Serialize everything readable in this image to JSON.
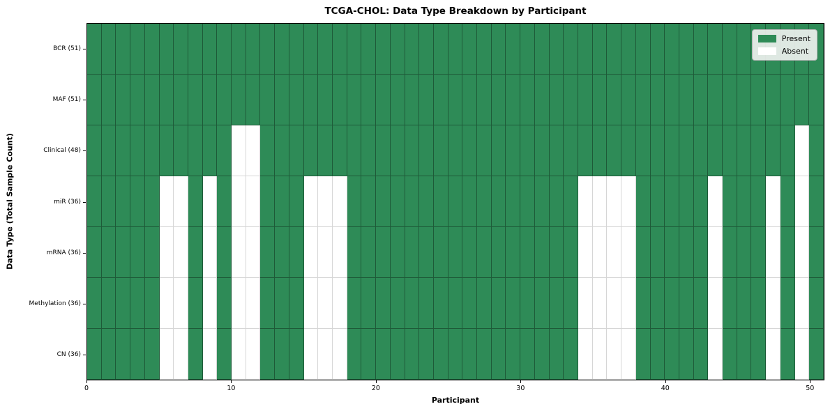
{
  "chart_data": {
    "type": "heatmap",
    "title": "TCGA-CHOL: Data Type Breakdown by Participant",
    "xlabel": "Participant",
    "ylabel": "Data Type (Total Sample Count)",
    "n_participants": 51,
    "x_range": [
      0,
      51
    ],
    "x_ticks": [
      0,
      10,
      20,
      30,
      40,
      50
    ],
    "grid": true,
    "legend_position": "upper right",
    "colors": {
      "present": "#2e8b57",
      "absent": "#ffffff"
    },
    "legend": [
      {
        "label": "Present",
        "color": "#2e8b57"
      },
      {
        "label": "Absent",
        "color": "#ffffff"
      }
    ],
    "rows": [
      {
        "label": "BCR (51)",
        "total_samples": 51,
        "absent_participants": []
      },
      {
        "label": "MAF (51)",
        "total_samples": 51,
        "absent_participants": []
      },
      {
        "label": "Clinical (48)",
        "total_samples": 48,
        "absent_participants": [
          10,
          11,
          49
        ]
      },
      {
        "label": "miR (36)",
        "total_samples": 36,
        "absent_participants": [
          5,
          6,
          8,
          10,
          11,
          15,
          16,
          17,
          34,
          35,
          36,
          37,
          43,
          47,
          49
        ]
      },
      {
        "label": "mRNA (36)",
        "total_samples": 36,
        "absent_participants": [
          5,
          6,
          8,
          10,
          11,
          15,
          16,
          17,
          34,
          35,
          36,
          37,
          43,
          47,
          49
        ]
      },
      {
        "label": "Methylation (36)",
        "total_samples": 36,
        "absent_participants": [
          5,
          6,
          8,
          10,
          11,
          15,
          16,
          17,
          34,
          35,
          36,
          37,
          43,
          47,
          49
        ]
      },
      {
        "label": "CN (36)",
        "total_samples": 36,
        "absent_participants": [
          5,
          6,
          8,
          10,
          11,
          15,
          16,
          17,
          34,
          35,
          36,
          37,
          43,
          47,
          49
        ]
      }
    ]
  }
}
